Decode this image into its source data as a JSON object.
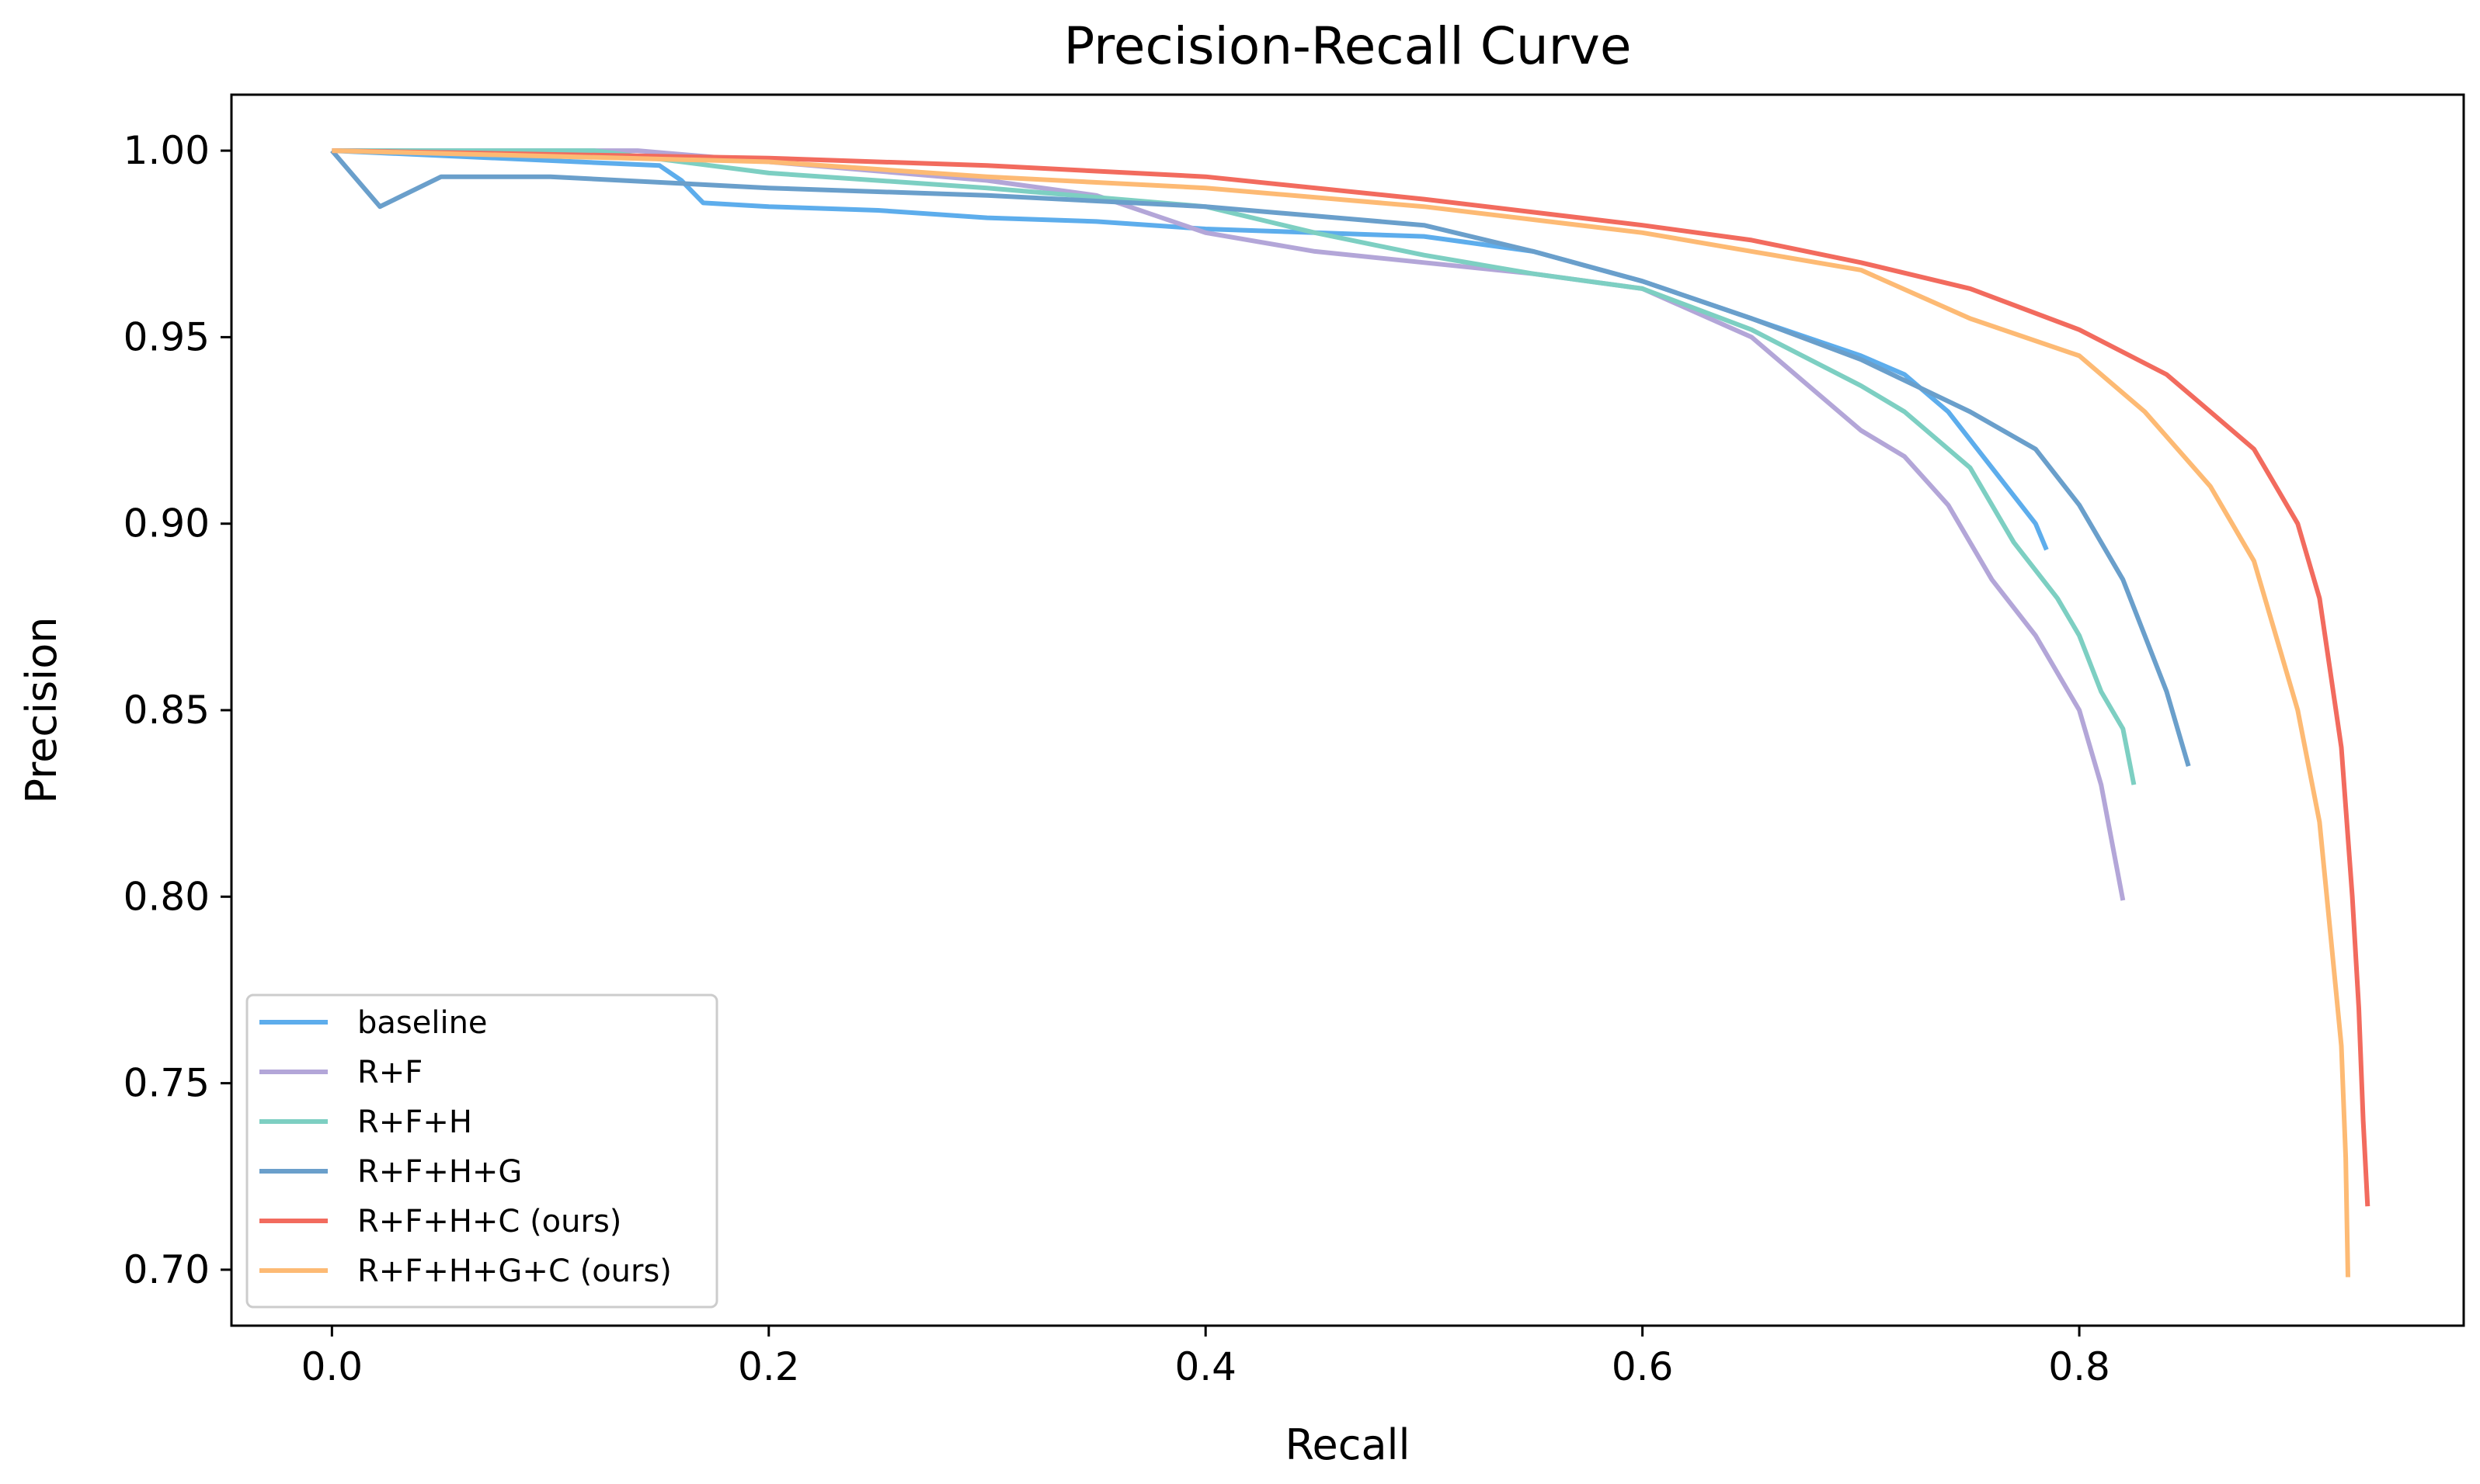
{
  "chart_data": {
    "type": "line",
    "title": "Precision-Recall Curve",
    "xlabel": "Recall",
    "ylabel": "Precision",
    "xlim": [
      -0.046,
      0.976
    ],
    "ylim": [
      0.685,
      1.015
    ],
    "xticks": [
      0.0,
      0.2,
      0.4,
      0.6,
      0.8
    ],
    "xtick_labels": [
      "0.0",
      "0.2",
      "0.4",
      "0.6",
      "0.8"
    ],
    "yticks": [
      0.7,
      0.75,
      0.8,
      0.85,
      0.9,
      0.95,
      1.0
    ],
    "ytick_labels": [
      "0.70",
      "0.75",
      "0.80",
      "0.85",
      "0.90",
      "0.95",
      "1.00"
    ],
    "grid": false,
    "legend_position": "lower-left",
    "series": [
      {
        "name": "baseline",
        "color": "#5DADEC",
        "points": [
          [
            0.0,
            1.0
          ],
          [
            0.15,
            0.996
          ],
          [
            0.16,
            0.992
          ],
          [
            0.17,
            0.986
          ],
          [
            0.2,
            0.985
          ],
          [
            0.25,
            0.984
          ],
          [
            0.3,
            0.982
          ],
          [
            0.35,
            0.981
          ],
          [
            0.4,
            0.979
          ],
          [
            0.45,
            0.978
          ],
          [
            0.5,
            0.977
          ],
          [
            0.55,
            0.973
          ],
          [
            0.6,
            0.965
          ],
          [
            0.65,
            0.955
          ],
          [
            0.7,
            0.945
          ],
          [
            0.72,
            0.94
          ],
          [
            0.74,
            0.93
          ],
          [
            0.76,
            0.915
          ],
          [
            0.78,
            0.9
          ],
          [
            0.785,
            0.893
          ]
        ]
      },
      {
        "name": "R+F",
        "color": "#B3A6D8",
        "points": [
          [
            0.0,
            1.0
          ],
          [
            0.14,
            1.0
          ],
          [
            0.2,
            0.997
          ],
          [
            0.3,
            0.992
          ],
          [
            0.35,
            0.988
          ],
          [
            0.4,
            0.978
          ],
          [
            0.45,
            0.973
          ],
          [
            0.5,
            0.97
          ],
          [
            0.55,
            0.967
          ],
          [
            0.6,
            0.963
          ],
          [
            0.65,
            0.95
          ],
          [
            0.68,
            0.935
          ],
          [
            0.7,
            0.925
          ],
          [
            0.72,
            0.918
          ],
          [
            0.74,
            0.905
          ],
          [
            0.76,
            0.885
          ],
          [
            0.78,
            0.87
          ],
          [
            0.8,
            0.85
          ],
          [
            0.81,
            0.83
          ],
          [
            0.82,
            0.799
          ]
        ]
      },
      {
        "name": "R+F+H",
        "color": "#7DCFC2",
        "points": [
          [
            0.0,
            1.0
          ],
          [
            0.12,
            1.0
          ],
          [
            0.2,
            0.994
          ],
          [
            0.3,
            0.99
          ],
          [
            0.4,
            0.985
          ],
          [
            0.45,
            0.978
          ],
          [
            0.5,
            0.972
          ],
          [
            0.55,
            0.967
          ],
          [
            0.6,
            0.963
          ],
          [
            0.65,
            0.952
          ],
          [
            0.7,
            0.937
          ],
          [
            0.72,
            0.93
          ],
          [
            0.75,
            0.915
          ],
          [
            0.77,
            0.895
          ],
          [
            0.79,
            0.88
          ],
          [
            0.8,
            0.87
          ],
          [
            0.81,
            0.855
          ],
          [
            0.82,
            0.845
          ],
          [
            0.825,
            0.83
          ]
        ]
      },
      {
        "name": "R+F+H+G",
        "color": "#6A9FCB",
        "points": [
          [
            0.0,
            1.0
          ],
          [
            0.022,
            0.985
          ],
          [
            0.05,
            0.993
          ],
          [
            0.1,
            0.993
          ],
          [
            0.2,
            0.99
          ],
          [
            0.3,
            0.988
          ],
          [
            0.4,
            0.985
          ],
          [
            0.5,
            0.98
          ],
          [
            0.55,
            0.973
          ],
          [
            0.6,
            0.965
          ],
          [
            0.65,
            0.955
          ],
          [
            0.7,
            0.944
          ],
          [
            0.75,
            0.93
          ],
          [
            0.78,
            0.92
          ],
          [
            0.8,
            0.905
          ],
          [
            0.82,
            0.885
          ],
          [
            0.83,
            0.87
          ],
          [
            0.84,
            0.855
          ],
          [
            0.85,
            0.835
          ]
        ]
      },
      {
        "name": "R+F+H+C (ours)",
        "color": "#F26B5E",
        "points": [
          [
            0.0,
            1.0
          ],
          [
            0.2,
            0.998
          ],
          [
            0.3,
            0.996
          ],
          [
            0.4,
            0.993
          ],
          [
            0.5,
            0.987
          ],
          [
            0.6,
            0.98
          ],
          [
            0.65,
            0.976
          ],
          [
            0.7,
            0.97
          ],
          [
            0.75,
            0.963
          ],
          [
            0.8,
            0.952
          ],
          [
            0.84,
            0.94
          ],
          [
            0.86,
            0.93
          ],
          [
            0.88,
            0.92
          ],
          [
            0.89,
            0.91
          ],
          [
            0.9,
            0.9
          ],
          [
            0.91,
            0.88
          ],
          [
            0.915,
            0.86
          ],
          [
            0.92,
            0.84
          ],
          [
            0.925,
            0.8
          ],
          [
            0.928,
            0.77
          ],
          [
            0.93,
            0.74
          ],
          [
            0.932,
            0.717
          ]
        ]
      },
      {
        "name": "R+F+H+G+C (ours)",
        "color": "#FDBA74",
        "points": [
          [
            0.0,
            1.0
          ],
          [
            0.2,
            0.997
          ],
          [
            0.3,
            0.993
          ],
          [
            0.4,
            0.99
          ],
          [
            0.5,
            0.985
          ],
          [
            0.6,
            0.978
          ],
          [
            0.65,
            0.973
          ],
          [
            0.7,
            0.968
          ],
          [
            0.75,
            0.955
          ],
          [
            0.8,
            0.945
          ],
          [
            0.83,
            0.93
          ],
          [
            0.86,
            0.91
          ],
          [
            0.88,
            0.89
          ],
          [
            0.89,
            0.87
          ],
          [
            0.9,
            0.85
          ],
          [
            0.91,
            0.82
          ],
          [
            0.915,
            0.79
          ],
          [
            0.92,
            0.76
          ],
          [
            0.922,
            0.73
          ],
          [
            0.923,
            0.698
          ]
        ]
      }
    ]
  }
}
